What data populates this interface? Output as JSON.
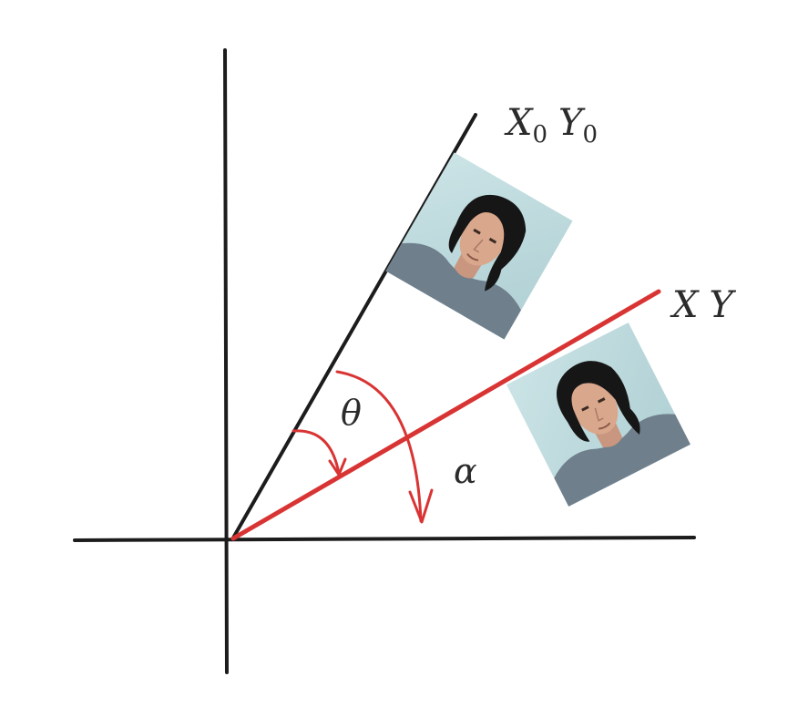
{
  "labels": {
    "original_axis": {
      "X": "X",
      "sub1": "0",
      "Y": "Y",
      "sub2": "0"
    },
    "rotated_axis": {
      "X": "X",
      "Y": "Y"
    },
    "theta": "θ",
    "alpha": "α"
  },
  "colors": {
    "axis": "#1c1c1c",
    "rotated": "#d93434",
    "arrow": "#d93434",
    "photo_background": "#bcd9dc",
    "hair": "#161616",
    "skin": "#d9a78c",
    "shirt": "#6f7f8c"
  },
  "elements": {
    "photo_original": "portrait-photo",
    "photo_rotated": "portrait-photo"
  }
}
